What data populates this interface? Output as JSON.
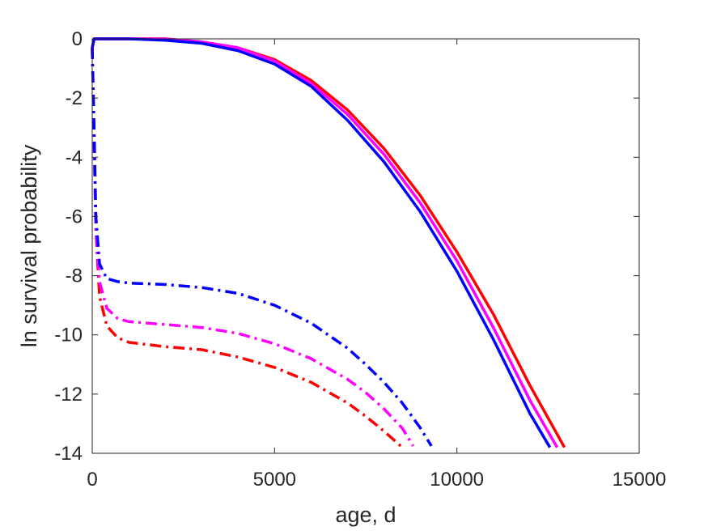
{
  "chart_data": {
    "type": "line",
    "xlabel": "age, d",
    "ylabel": "ln survival probability",
    "xlim": [
      0,
      15000
    ],
    "ylim": [
      -14,
      0
    ],
    "xticks": [
      0,
      5000,
      10000,
      15000
    ],
    "yticks": [
      0,
      -2,
      -4,
      -6,
      -8,
      -10,
      -12,
      -14
    ],
    "grid": false,
    "legend": "none",
    "series": [
      {
        "color": "#ff0000",
        "style": "solid",
        "x": [
          0,
          50,
          1000,
          2000,
          3000,
          4000,
          5000,
          6000,
          7000,
          8000,
          9000,
          10000,
          11000,
          12000,
          12950
        ],
        "y": [
          -0.3,
          0,
          0,
          0,
          -0.1,
          -0.3,
          -0.7,
          -1.4,
          -2.4,
          -3.7,
          -5.3,
          -7.2,
          -9.3,
          -11.7,
          -13.8
        ]
      },
      {
        "color": "#ff00ff",
        "style": "solid",
        "x": [
          0,
          50,
          1000,
          2000,
          3000,
          4000,
          5000,
          6000,
          7000,
          8000,
          9000,
          10000,
          11000,
          12000,
          12750
        ],
        "y": [
          -0.3,
          0,
          0,
          0,
          -0.1,
          -0.3,
          -0.75,
          -1.5,
          -2.55,
          -3.9,
          -5.55,
          -7.5,
          -9.75,
          -12.2,
          -13.8
        ]
      },
      {
        "color": "#0000ff",
        "style": "solid",
        "x": [
          0,
          50,
          1000,
          2000,
          3000,
          4000,
          5000,
          6000,
          7000,
          8000,
          9000,
          10000,
          11000,
          12000,
          12550
        ],
        "y": [
          -0.3,
          0,
          0,
          -0.05,
          -0.15,
          -0.4,
          -0.85,
          -1.6,
          -2.75,
          -4.15,
          -5.85,
          -7.85,
          -10.15,
          -12.65,
          -13.8
        ]
      },
      {
        "color": "#ff0000",
        "style": "dashdot",
        "x": [
          0,
          50,
          100,
          200,
          400,
          700,
          1000,
          2000,
          3000,
          4000,
          5000,
          6000,
          7000,
          7500,
          8000,
          8500
        ],
        "y": [
          -0.3,
          -3.5,
          -6.5,
          -8.7,
          -9.7,
          -10.1,
          -10.25,
          -10.4,
          -10.5,
          -10.75,
          -11.1,
          -11.6,
          -12.3,
          -12.75,
          -13.25,
          -13.8
        ]
      },
      {
        "color": "#ff00ff",
        "style": "dashdot",
        "x": [
          0,
          50,
          100,
          200,
          400,
          700,
          1000,
          2000,
          3000,
          4000,
          5000,
          6000,
          7000,
          7500,
          8000,
          8500,
          8800
        ],
        "y": [
          -0.3,
          -3.5,
          -6.4,
          -8.2,
          -9.1,
          -9.45,
          -9.55,
          -9.65,
          -9.75,
          -9.95,
          -10.3,
          -10.8,
          -11.5,
          -11.95,
          -12.5,
          -13.15,
          -13.75
        ]
      },
      {
        "color": "#0000ff",
        "style": "dashdot",
        "x": [
          0,
          50,
          100,
          200,
          400,
          700,
          1000,
          2000,
          3000,
          4000,
          5000,
          6000,
          7000,
          7500,
          8000,
          8500,
          9000,
          9300
        ],
        "y": [
          -0.3,
          -3.0,
          -6.0,
          -7.6,
          -8.1,
          -8.2,
          -8.25,
          -8.3,
          -8.4,
          -8.6,
          -9.0,
          -9.6,
          -10.45,
          -11.0,
          -11.6,
          -12.3,
          -13.15,
          -13.75
        ]
      }
    ]
  }
}
